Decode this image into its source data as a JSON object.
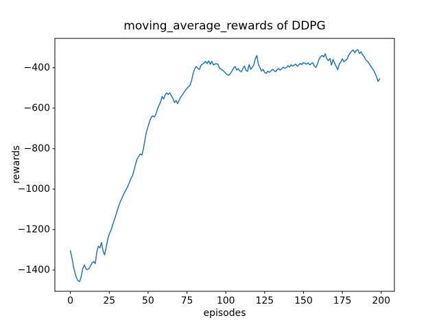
{
  "chart_data": {
    "type": "line",
    "title": "moving_average_rewards of DDPG",
    "xlabel": "episodes",
    "ylabel": "rewards",
    "grid": false,
    "legend_position": "none",
    "xlim": [
      -10,
      208.5
    ],
    "ylim": [
      -1505,
      -255
    ],
    "xticks": [
      {
        "value": 0,
        "label": "0"
      },
      {
        "value": 25,
        "label": "25"
      },
      {
        "value": 50,
        "label": "50"
      },
      {
        "value": 75,
        "label": "75"
      },
      {
        "value": 100,
        "label": "100"
      },
      {
        "value": 125,
        "label": "125"
      },
      {
        "value": 150,
        "label": "150"
      },
      {
        "value": 175,
        "label": "175"
      },
      {
        "value": 200,
        "label": "200"
      }
    ],
    "yticks": [
      {
        "value": -400,
        "label": "−400"
      },
      {
        "value": -600,
        "label": "−600"
      },
      {
        "value": -800,
        "label": "−800"
      },
      {
        "value": -1000,
        "label": "−1000"
      },
      {
        "value": -1200,
        "label": "−1200"
      },
      {
        "value": -1400,
        "label": "−1400"
      }
    ],
    "series": [
      {
        "name": "moving_average_rewards",
        "color": "#1f77b4",
        "line_width": 1.5,
        "x_start": 0,
        "x_step": 1,
        "values": [
          -1305,
          -1340,
          -1385,
          -1415,
          -1440,
          -1454,
          -1456,
          -1430,
          -1392,
          -1375,
          -1395,
          -1398,
          -1392,
          -1380,
          -1364,
          -1358,
          -1368,
          -1310,
          -1282,
          -1290,
          -1264,
          -1305,
          -1325,
          -1288,
          -1248,
          -1222,
          -1205,
          -1182,
          -1158,
          -1135,
          -1110,
          -1085,
          -1065,
          -1048,
          -1030,
          -1014,
          -1000,
          -985,
          -966,
          -946,
          -932,
          -905,
          -875,
          -850,
          -838,
          -826,
          -832,
          -800,
          -755,
          -715,
          -690,
          -665,
          -645,
          -638,
          -644,
          -630,
          -605,
          -585,
          -570,
          -542,
          -555,
          -533,
          -525,
          -532,
          -524,
          -540,
          -552,
          -572,
          -562,
          -578,
          -560,
          -545,
          -535,
          -523,
          -512,
          -502,
          -494,
          -487,
          -462,
          -428,
          -405,
          -394,
          -403,
          -409,
          -388,
          -382,
          -377,
          -369,
          -380,
          -366,
          -383,
          -368,
          -386,
          -382,
          -380,
          -383,
          -402,
          -408,
          -412,
          -420,
          -428,
          -434,
          -437,
          -428,
          -416,
          -402,
          -394,
          -412,
          -404,
          -416,
          -420,
          -404,
          -391,
          -414,
          -418,
          -384,
          -408,
          -398,
          -386,
          -356,
          -340,
          -385,
          -400,
          -417,
          -408,
          -424,
          -428,
          -417,
          -423,
          -416,
          -408,
          -414,
          -420,
          -410,
          -404,
          -412,
          -404,
          -397,
          -403,
          -399,
          -390,
          -397,
          -385,
          -392,
          -387,
          -382,
          -393,
          -385,
          -379,
          -384,
          -375,
          -379,
          -382,
          -376,
          -386,
          -380,
          -375,
          -392,
          -399,
          -381,
          -358,
          -345,
          -339,
          -347,
          -331,
          -356,
          -365,
          -354,
          -387,
          -359,
          -377,
          -393,
          -410,
          -382,
          -372,
          -356,
          -371,
          -363,
          -358,
          -340,
          -328,
          -318,
          -312,
          -326,
          -314,
          -311,
          -330,
          -321,
          -336,
          -345,
          -360,
          -367,
          -377,
          -389,
          -400,
          -412,
          -426,
          -445,
          -468,
          -455
        ]
      }
    ]
  }
}
